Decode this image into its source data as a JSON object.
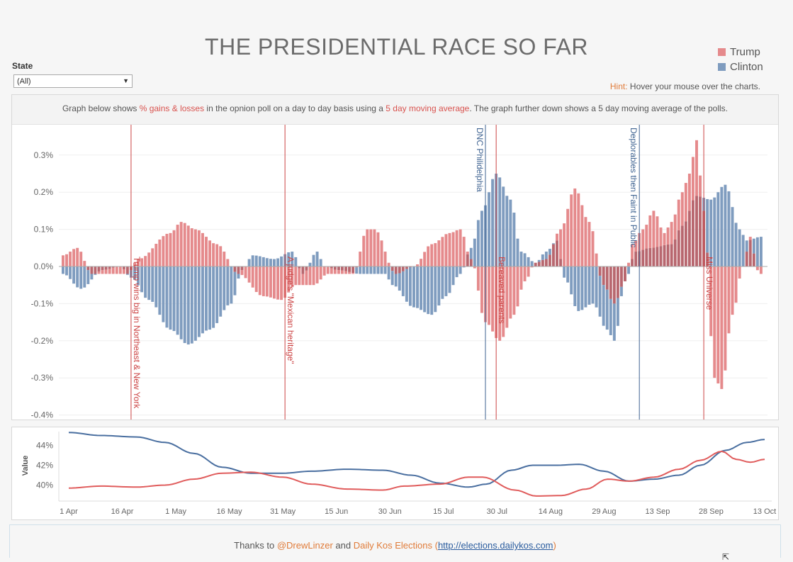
{
  "page": {
    "title": "THE PRESIDENTIAL RACE SO FAR",
    "state_filter": {
      "label": "State",
      "value": "(All)"
    },
    "hint": {
      "key": "Hint:",
      "text": " Hover your mouse over the charts."
    },
    "legend": [
      {
        "name": "Trump",
        "color": "#e58a8c"
      },
      {
        "name": "Clinton",
        "color": "#7f9cbf"
      }
    ],
    "description": {
      "p1": "Graph below shows ",
      "h1": "% gains & losses",
      "p2": " in the opnion poll on a day to day basis using a ",
      "h2": "5 day moving average",
      "p3": ". The graph further down shows a 5 day moving average of the polls."
    },
    "footer": {
      "p1": "Thanks to ",
      "link1": "@DrewLinzer",
      "p2": " and ",
      "link2": "Daily Kos Elections",
      "p3": " (",
      "link3": "http://elections.dailykos.com",
      "p4": ")"
    }
  },
  "chart_data": [
    {
      "type": "bar",
      "title": "",
      "x_start": "2016-04-01",
      "x_end": "2016-10-13",
      "ylim": [
        -0.4,
        0.33
      ],
      "y_ticks": [
        "0.3%",
        "0.2%",
        "0.1%",
        "0.0%",
        "-0.1%",
        "-0.2%",
        "-0.3%",
        "-0.4%"
      ],
      "y_tick_values": [
        0.3,
        0.2,
        0.1,
        0.0,
        -0.1,
        -0.2,
        -0.3,
        -0.4
      ],
      "series_colors": {
        "Trump": "#e58a8c",
        "Clinton": "#7f9cbf",
        "overlap": "#b8676f"
      },
      "trump_keyframes": [
        [
          "2016-04-01",
          0.03
        ],
        [
          "2016-04-05",
          0.05
        ],
        [
          "2016-04-09",
          -0.02
        ],
        [
          "2016-04-19",
          -0.02
        ],
        [
          "2016-04-22",
          0.02
        ],
        [
          "2016-05-01",
          0.09
        ],
        [
          "2016-05-04",
          0.12
        ],
        [
          "2016-05-08",
          0.1
        ],
        [
          "2016-05-14",
          0.06
        ],
        [
          "2016-05-20",
          -0.02
        ],
        [
          "2016-05-27",
          -0.08
        ],
        [
          "2016-06-01",
          -0.09
        ],
        [
          "2016-06-05",
          -0.05
        ],
        [
          "2016-06-10",
          -0.05
        ],
        [
          "2016-06-14",
          -0.02
        ],
        [
          "2016-06-21",
          -0.02
        ],
        [
          "2016-06-25",
          0.1
        ],
        [
          "2016-06-27",
          0.1
        ],
        [
          "2016-07-03",
          -0.02
        ],
        [
          "2016-07-08",
          0.0
        ],
        [
          "2016-07-13",
          0.06
        ],
        [
          "2016-07-18",
          0.09
        ],
        [
          "2016-07-21",
          0.1
        ],
        [
          "2016-07-24",
          0.02
        ],
        [
          "2016-07-28",
          -0.15
        ],
        [
          "2016-08-01",
          -0.2
        ],
        [
          "2016-08-05",
          -0.13
        ],
        [
          "2016-08-08",
          -0.04
        ],
        [
          "2016-08-11",
          0.01
        ],
        [
          "2016-08-14",
          0.02
        ],
        [
          "2016-08-18",
          0.1
        ],
        [
          "2016-08-22",
          0.21
        ],
        [
          "2016-08-26",
          0.12
        ],
        [
          "2016-08-30",
          -0.05
        ],
        [
          "2016-09-02",
          -0.1
        ],
        [
          "2016-09-05",
          -0.04
        ],
        [
          "2016-09-07",
          0.06
        ],
        [
          "2016-09-10",
          0.1
        ],
        [
          "2016-09-13",
          0.15
        ],
        [
          "2016-09-16",
          0.09
        ],
        [
          "2016-09-18",
          0.12
        ],
        [
          "2016-09-21",
          0.2
        ],
        [
          "2016-09-23",
          0.25
        ],
        [
          "2016-09-25",
          0.34
        ],
        [
          "2016-09-27",
          0.15
        ],
        [
          "2016-09-30",
          -0.3
        ],
        [
          "2016-10-02",
          -0.33
        ],
        [
          "2016-10-05",
          -0.13
        ],
        [
          "2016-10-08",
          0.0
        ],
        [
          "2016-10-10",
          0.08
        ],
        [
          "2016-10-12",
          -0.01
        ],
        [
          "2016-10-13",
          -0.02
        ]
      ],
      "clinton_keyframes": [
        [
          "2016-04-01",
          -0.02
        ],
        [
          "2016-04-06",
          -0.06
        ],
        [
          "2016-04-12",
          -0.01
        ],
        [
          "2016-04-17",
          0.0
        ],
        [
          "2016-04-20",
          -0.03
        ],
        [
          "2016-04-25",
          -0.09
        ],
        [
          "2016-05-01",
          -0.17
        ],
        [
          "2016-05-06",
          -0.21
        ],
        [
          "2016-05-12",
          -0.17
        ],
        [
          "2016-05-18",
          -0.1
        ],
        [
          "2016-05-21",
          -0.01
        ],
        [
          "2016-05-24",
          0.03
        ],
        [
          "2016-05-30",
          0.02
        ],
        [
          "2016-06-04",
          0.04
        ],
        [
          "2016-06-07",
          -0.02
        ],
        [
          "2016-06-11",
          0.04
        ],
        [
          "2016-06-13",
          0.0
        ],
        [
          "2016-06-17",
          -0.01
        ],
        [
          "2016-06-23",
          -0.02
        ],
        [
          "2016-06-30",
          -0.02
        ],
        [
          "2016-07-02",
          -0.05
        ],
        [
          "2016-07-08",
          -0.11
        ],
        [
          "2016-07-13",
          -0.13
        ],
        [
          "2016-07-17",
          -0.08
        ],
        [
          "2016-07-21",
          -0.02
        ],
        [
          "2016-07-24",
          0.05
        ],
        [
          "2016-07-27",
          0.15
        ],
        [
          "2016-07-31",
          0.25
        ],
        [
          "2016-08-04",
          0.18
        ],
        [
          "2016-08-07",
          0.04
        ],
        [
          "2016-08-11",
          0.01
        ],
        [
          "2016-08-14",
          0.04
        ],
        [
          "2016-08-17",
          0.07
        ],
        [
          "2016-08-19",
          -0.03
        ],
        [
          "2016-08-23",
          -0.12
        ],
        [
          "2016-08-27",
          -0.1
        ],
        [
          "2016-08-31",
          -0.17
        ],
        [
          "2016-09-02",
          -0.2
        ],
        [
          "2016-09-05",
          -0.04
        ],
        [
          "2016-09-08",
          0.04
        ],
        [
          "2016-09-12",
          0.05
        ],
        [
          "2016-09-18",
          0.06
        ],
        [
          "2016-09-21",
          0.11
        ],
        [
          "2016-09-25",
          0.19
        ],
        [
          "2016-09-29",
          0.18
        ],
        [
          "2016-10-03",
          0.22
        ],
        [
          "2016-10-07",
          0.1
        ],
        [
          "2016-10-09",
          0.07
        ],
        [
          "2016-10-13",
          0.08
        ]
      ],
      "events": [
        {
          "date": "2016-04-20",
          "label": "Trump wins big in Northeast & New York",
          "party": "Trump",
          "position": "bottom"
        },
        {
          "date": "2016-06-02",
          "label": "A judge's \"Mexican heritage\"",
          "party": "Trump",
          "position": "bottom"
        },
        {
          "date": "2016-07-28",
          "label": "DNC Philidelphia",
          "party": "Clinton",
          "position": "top"
        },
        {
          "date": "2016-07-31",
          "label": "Bereaved parents",
          "party": "Trump",
          "position": "bottom"
        },
        {
          "date": "2016-09-09",
          "label": "Deplorables then Faint in Public",
          "party": "Clinton",
          "position": "top"
        },
        {
          "date": "2016-09-27",
          "label": "Miss Universe",
          "party": "Trump",
          "position": "bottom"
        }
      ]
    },
    {
      "type": "line",
      "title": "",
      "ylabel": "Value",
      "y_ticks": [
        "44%",
        "42%",
        "40%"
      ],
      "y_tick_values": [
        44,
        42,
        40
      ],
      "ylim": [
        38.8,
        45.5
      ],
      "x_ticks": [
        "1 Apr",
        "16 Apr",
        "1 May",
        "16 May",
        "31 May",
        "15 Jun",
        "30 Jun",
        "15 Jul",
        "30 Jul",
        "14 Aug",
        "29 Aug",
        "13 Sep",
        "28 Sep",
        "13 Oct"
      ],
      "x_tick_dates": [
        "2016-04-01",
        "2016-04-16",
        "2016-05-01",
        "2016-05-16",
        "2016-05-31",
        "2016-06-15",
        "2016-06-30",
        "2016-07-15",
        "2016-07-30",
        "2016-08-14",
        "2016-08-29",
        "2016-09-13",
        "2016-09-28",
        "2016-10-13"
      ],
      "series": [
        {
          "name": "Clinton",
          "color": "#4a6fa0",
          "points": [
            [
              "2016-04-01",
              45.3
            ],
            [
              "2016-04-10",
              45.0
            ],
            [
              "2016-04-20",
              44.85
            ],
            [
              "2016-04-28",
              44.3
            ],
            [
              "2016-05-06",
              43.2
            ],
            [
              "2016-05-14",
              41.8
            ],
            [
              "2016-05-22",
              41.2
            ],
            [
              "2016-05-31",
              41.2
            ],
            [
              "2016-06-08",
              41.4
            ],
            [
              "2016-06-18",
              41.6
            ],
            [
              "2016-06-28",
              41.5
            ],
            [
              "2016-07-06",
              41.0
            ],
            [
              "2016-07-14",
              40.2
            ],
            [
              "2016-07-22",
              39.8
            ],
            [
              "2016-07-27",
              40.1
            ],
            [
              "2016-08-03",
              41.5
            ],
            [
              "2016-08-09",
              42.0
            ],
            [
              "2016-08-16",
              42.0
            ],
            [
              "2016-08-22",
              42.1
            ],
            [
              "2016-08-29",
              41.4
            ],
            [
              "2016-09-05",
              40.4
            ],
            [
              "2016-09-12",
              40.6
            ],
            [
              "2016-09-19",
              41.0
            ],
            [
              "2016-09-25",
              42.0
            ],
            [
              "2016-10-02",
              43.5
            ],
            [
              "2016-10-08",
              44.3
            ],
            [
              "2016-10-13",
              44.6
            ]
          ]
        },
        {
          "name": "Trump",
          "color": "#e05c5c",
          "points": [
            [
              "2016-04-01",
              39.7
            ],
            [
              "2016-04-10",
              39.9
            ],
            [
              "2016-04-20",
              39.8
            ],
            [
              "2016-04-28",
              40.0
            ],
            [
              "2016-05-06",
              40.6
            ],
            [
              "2016-05-14",
              41.2
            ],
            [
              "2016-05-22",
              41.3
            ],
            [
              "2016-05-31",
              40.8
            ],
            [
              "2016-06-08",
              40.1
            ],
            [
              "2016-06-18",
              39.6
            ],
            [
              "2016-06-28",
              39.5
            ],
            [
              "2016-07-04",
              39.9
            ],
            [
              "2016-07-14",
              40.1
            ],
            [
              "2016-07-22",
              40.8
            ],
            [
              "2016-07-26",
              40.8
            ],
            [
              "2016-08-04",
              39.5
            ],
            [
              "2016-08-10",
              38.9
            ],
            [
              "2016-08-17",
              38.95
            ],
            [
              "2016-08-24",
              39.6
            ],
            [
              "2016-08-30",
              40.6
            ],
            [
              "2016-09-05",
              40.4
            ],
            [
              "2016-09-12",
              40.8
            ],
            [
              "2016-09-19",
              41.6
            ],
            [
              "2016-09-25",
              42.5
            ],
            [
              "2016-10-01",
              43.4
            ],
            [
              "2016-10-05",
              42.6
            ],
            [
              "2016-10-09",
              42.3
            ],
            [
              "2016-10-13",
              42.6
            ]
          ]
        }
      ]
    }
  ]
}
